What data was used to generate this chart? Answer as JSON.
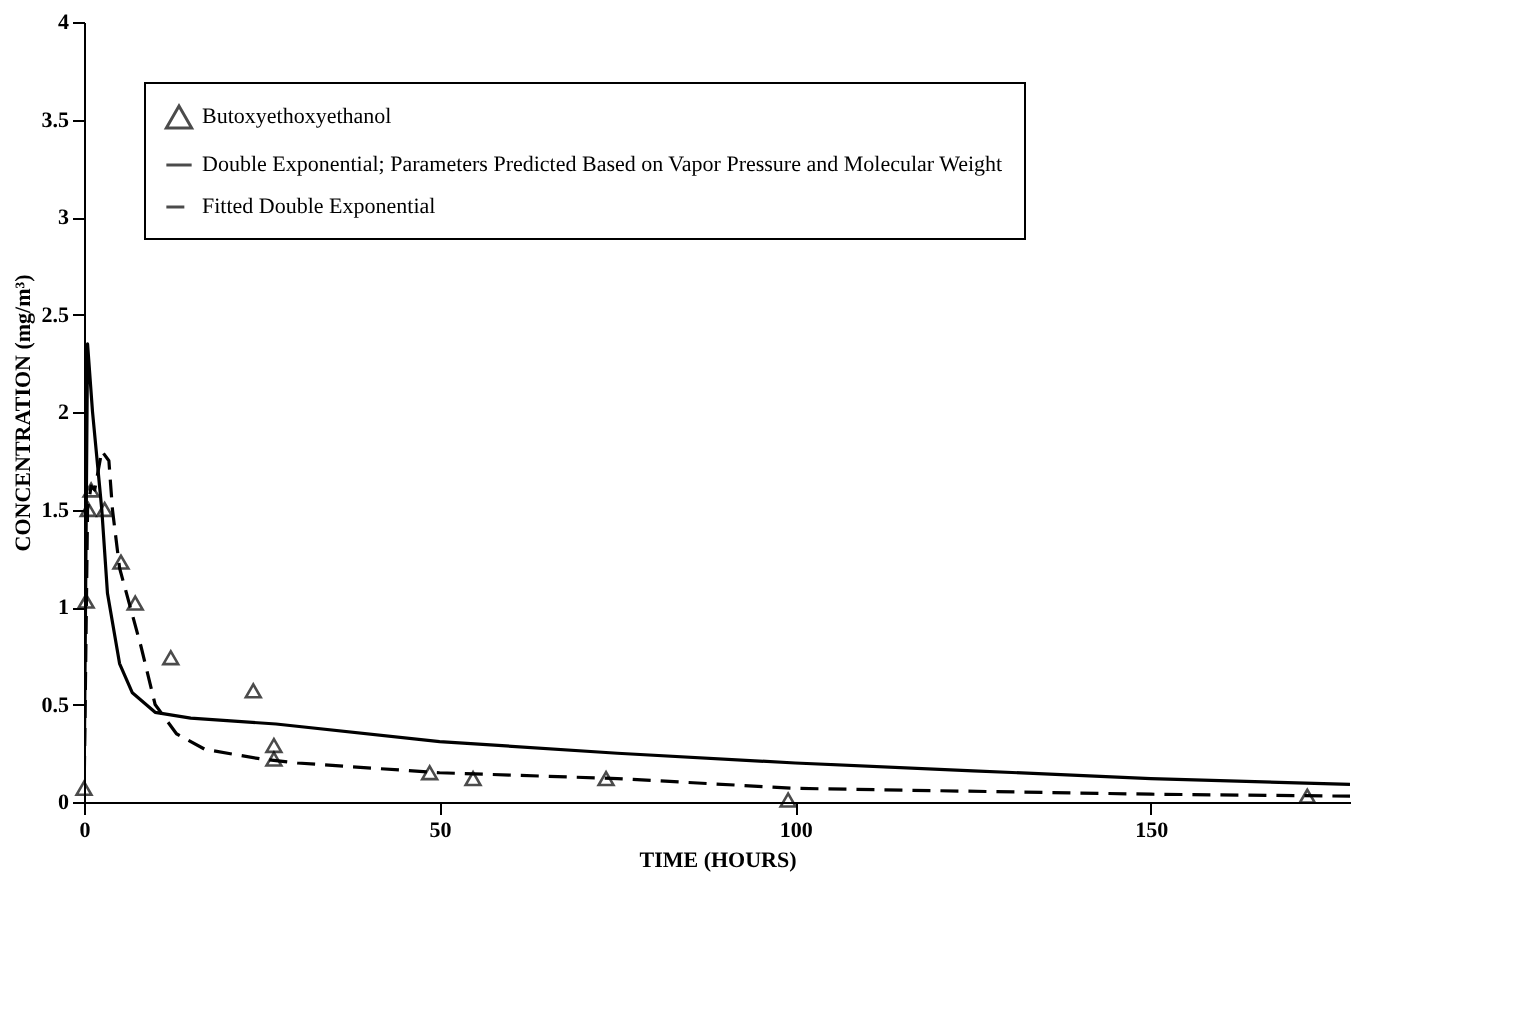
{
  "chart_data": {
    "type": "line",
    "xlabel": "TIME (HOURS)",
    "ylabel": "CONCENTRATION (mg/m³)",
    "xlim": [
      0,
      178
    ],
    "xticks": [
      0,
      50,
      100,
      150
    ],
    "ylim": [
      0,
      4
    ],
    "yticks": [
      0,
      0.5,
      1,
      1.5,
      2,
      2.5,
      3,
      3.5,
      4
    ],
    "grid": false,
    "legend": "top left",
    "series": [
      {
        "name": "Butoxyethoxyethanol",
        "type": "scatter",
        "marker": "triangle",
        "color": "#000000",
        "x": [
          0,
          0.3,
          0.6,
          1,
          2.9,
          5.2,
          7.2,
          12.2,
          23.8,
          26.7,
          26.7,
          48.6,
          54.7,
          73.4,
          99,
          172
        ],
        "values": [
          0.07,
          1.03,
          1.5,
          1.6,
          1.5,
          1.23,
          1.02,
          0.74,
          0.57,
          0.29,
          0.22,
          0.15,
          0.12,
          0.12,
          0.01,
          0.03
        ]
      },
      {
        "name": "Double Exponential; Parameters Predicted Based on Vapor Pressure and Molecular Weight",
        "line_style": "solid",
        "color": "#000000",
        "x": [
          0,
          0.5,
          1.2,
          2.5,
          3.3,
          5,
          6.8,
          10,
          15,
          27,
          50,
          75,
          100,
          125,
          150,
          178
        ],
        "values": [
          0,
          2.35,
          2.0,
          1.5,
          1.07,
          0.71,
          0.56,
          0.46,
          0.43,
          0.4,
          0.31,
          0.25,
          0.2,
          0.16,
          0.12,
          0.09
        ]
      },
      {
        "name": "Fitted Double Exponential",
        "line_style": "dashed",
        "color": "#000000",
        "x": [
          0,
          0.5,
          1,
          1.5,
          2.5,
          3.5,
          4,
          5,
          8,
          10,
          13,
          17,
          25,
          30,
          50,
          75,
          100,
          150,
          178
        ],
        "values": [
          0,
          1.5,
          1.62,
          1.6,
          1.8,
          1.75,
          1.5,
          1.2,
          0.8,
          0.5,
          0.35,
          0.27,
          0.22,
          0.2,
          0.15,
          0.12,
          0.07,
          0.04,
          0.03
        ]
      }
    ]
  }
}
